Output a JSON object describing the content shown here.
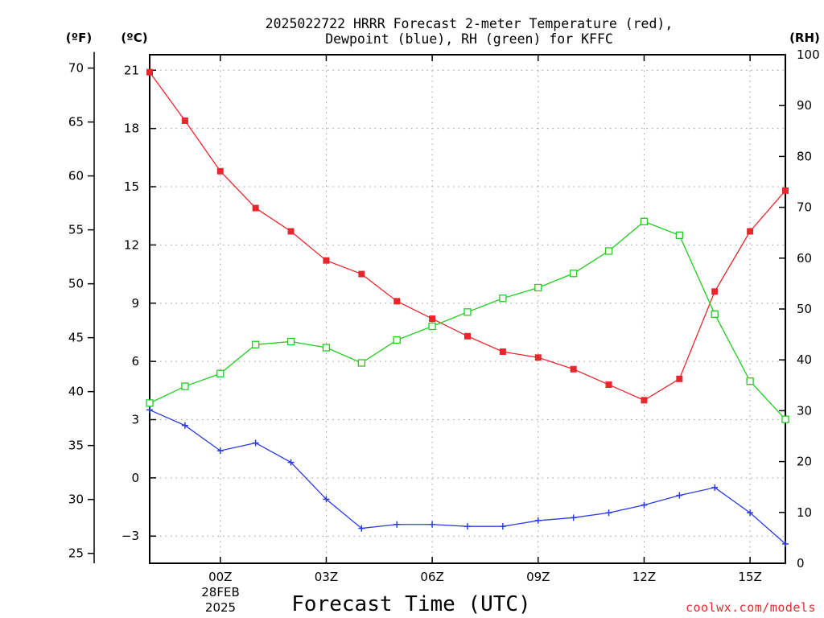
{
  "chart_data": {
    "type": "line",
    "title_lines": [
      "2025022722 HRRR Forecast 2-meter Temperature (red),",
      "Dewpoint (blue), RH (green) for KFFC"
    ],
    "xlabel": "Forecast Time (UTC)",
    "credit": "coolwx.com/models",
    "date_label": [
      "28FEB",
      "2025"
    ],
    "x_hours": [
      22,
      23,
      24,
      25,
      26,
      27,
      28,
      29,
      30,
      31,
      32,
      33,
      34,
      35,
      36,
      37,
      38,
      39,
      40
    ],
    "x_ticks": [
      {
        "hour": 24,
        "label": "00Z"
      },
      {
        "hour": 27,
        "label": "03Z"
      },
      {
        "hour": 30,
        "label": "06Z"
      },
      {
        "hour": 33,
        "label": "09Z"
      },
      {
        "hour": 36,
        "label": "12Z"
      },
      {
        "hour": 39,
        "label": "15Z"
      }
    ],
    "xlim": [
      22,
      40
    ],
    "axes": {
      "fahrenheit": {
        "unit_label": "(ºF)",
        "ticks": [
          25,
          30,
          35,
          40,
          45,
          50,
          55,
          60,
          65,
          70
        ]
      },
      "celsius": {
        "unit_label": "(ºC)",
        "ticks": [
          -3,
          0,
          3,
          6,
          9,
          12,
          15,
          18,
          21
        ],
        "ylim": [
          -4.4,
          21.8
        ]
      },
      "rh": {
        "unit_label": "(RH)",
        "ticks": [
          0,
          10,
          20,
          30,
          40,
          50,
          60,
          70,
          80,
          90,
          100
        ],
        "ylim": [
          0,
          100
        ]
      }
    },
    "grid": true,
    "series": [
      {
        "name": "Temperature",
        "axis": "celsius",
        "color": "#e8272d",
        "marker": "filled-square",
        "values": [
          20.9,
          18.4,
          15.8,
          13.9,
          12.7,
          11.2,
          10.5,
          9.1,
          8.2,
          7.3,
          6.5,
          6.2,
          5.6,
          4.8,
          4.0,
          5.1,
          9.6,
          12.7,
          14.8
        ]
      },
      {
        "name": "Dewpoint",
        "axis": "celsius",
        "color": "#2b3ce0",
        "marker": "plus",
        "values": [
          3.5,
          2.7,
          1.4,
          1.8,
          0.8,
          -1.1,
          -2.6,
          -2.4,
          -2.4,
          -2.5,
          -2.5,
          -2.2,
          -2.05,
          -1.8,
          -1.4,
          -0.9,
          -0.5,
          -1.8,
          -3.4
        ]
      },
      {
        "name": "RH",
        "axis": "rh",
        "color": "#22cc22",
        "marker": "open-square",
        "values": [
          31.5,
          34.8,
          37.3,
          43.0,
          43.6,
          42.4,
          39.4,
          43.9,
          46.6,
          49.4,
          52.1,
          54.2,
          57.0,
          61.4,
          67.2,
          64.5,
          49.0,
          35.8,
          28.3
        ]
      }
    ]
  }
}
